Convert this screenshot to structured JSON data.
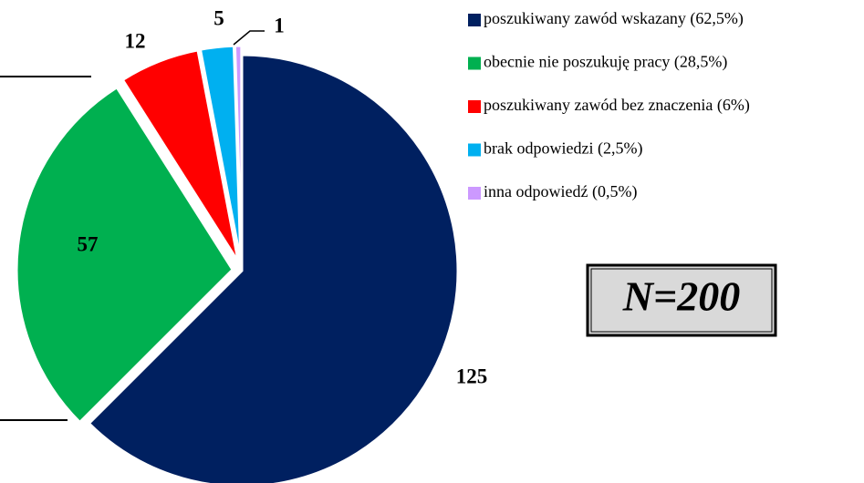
{
  "chart_data": {
    "type": "pie",
    "categories": [
      "poszukiwany zawód wskazany (62,5%)",
      "obecnie nie poszukuję pracy (28,5%)",
      "poszukiwany zawód bez znaczenia (6%)",
      "brak odpowiedzi (2,5%)",
      "inna odpowiedź (0,5%)"
    ],
    "values": [
      125,
      57,
      12,
      5,
      1
    ],
    "colors": [
      "#002060",
      "#00b050",
      "#ff0000",
      "#00b0f0",
      "#cc99ff"
    ],
    "annotation": "N=200"
  }
}
